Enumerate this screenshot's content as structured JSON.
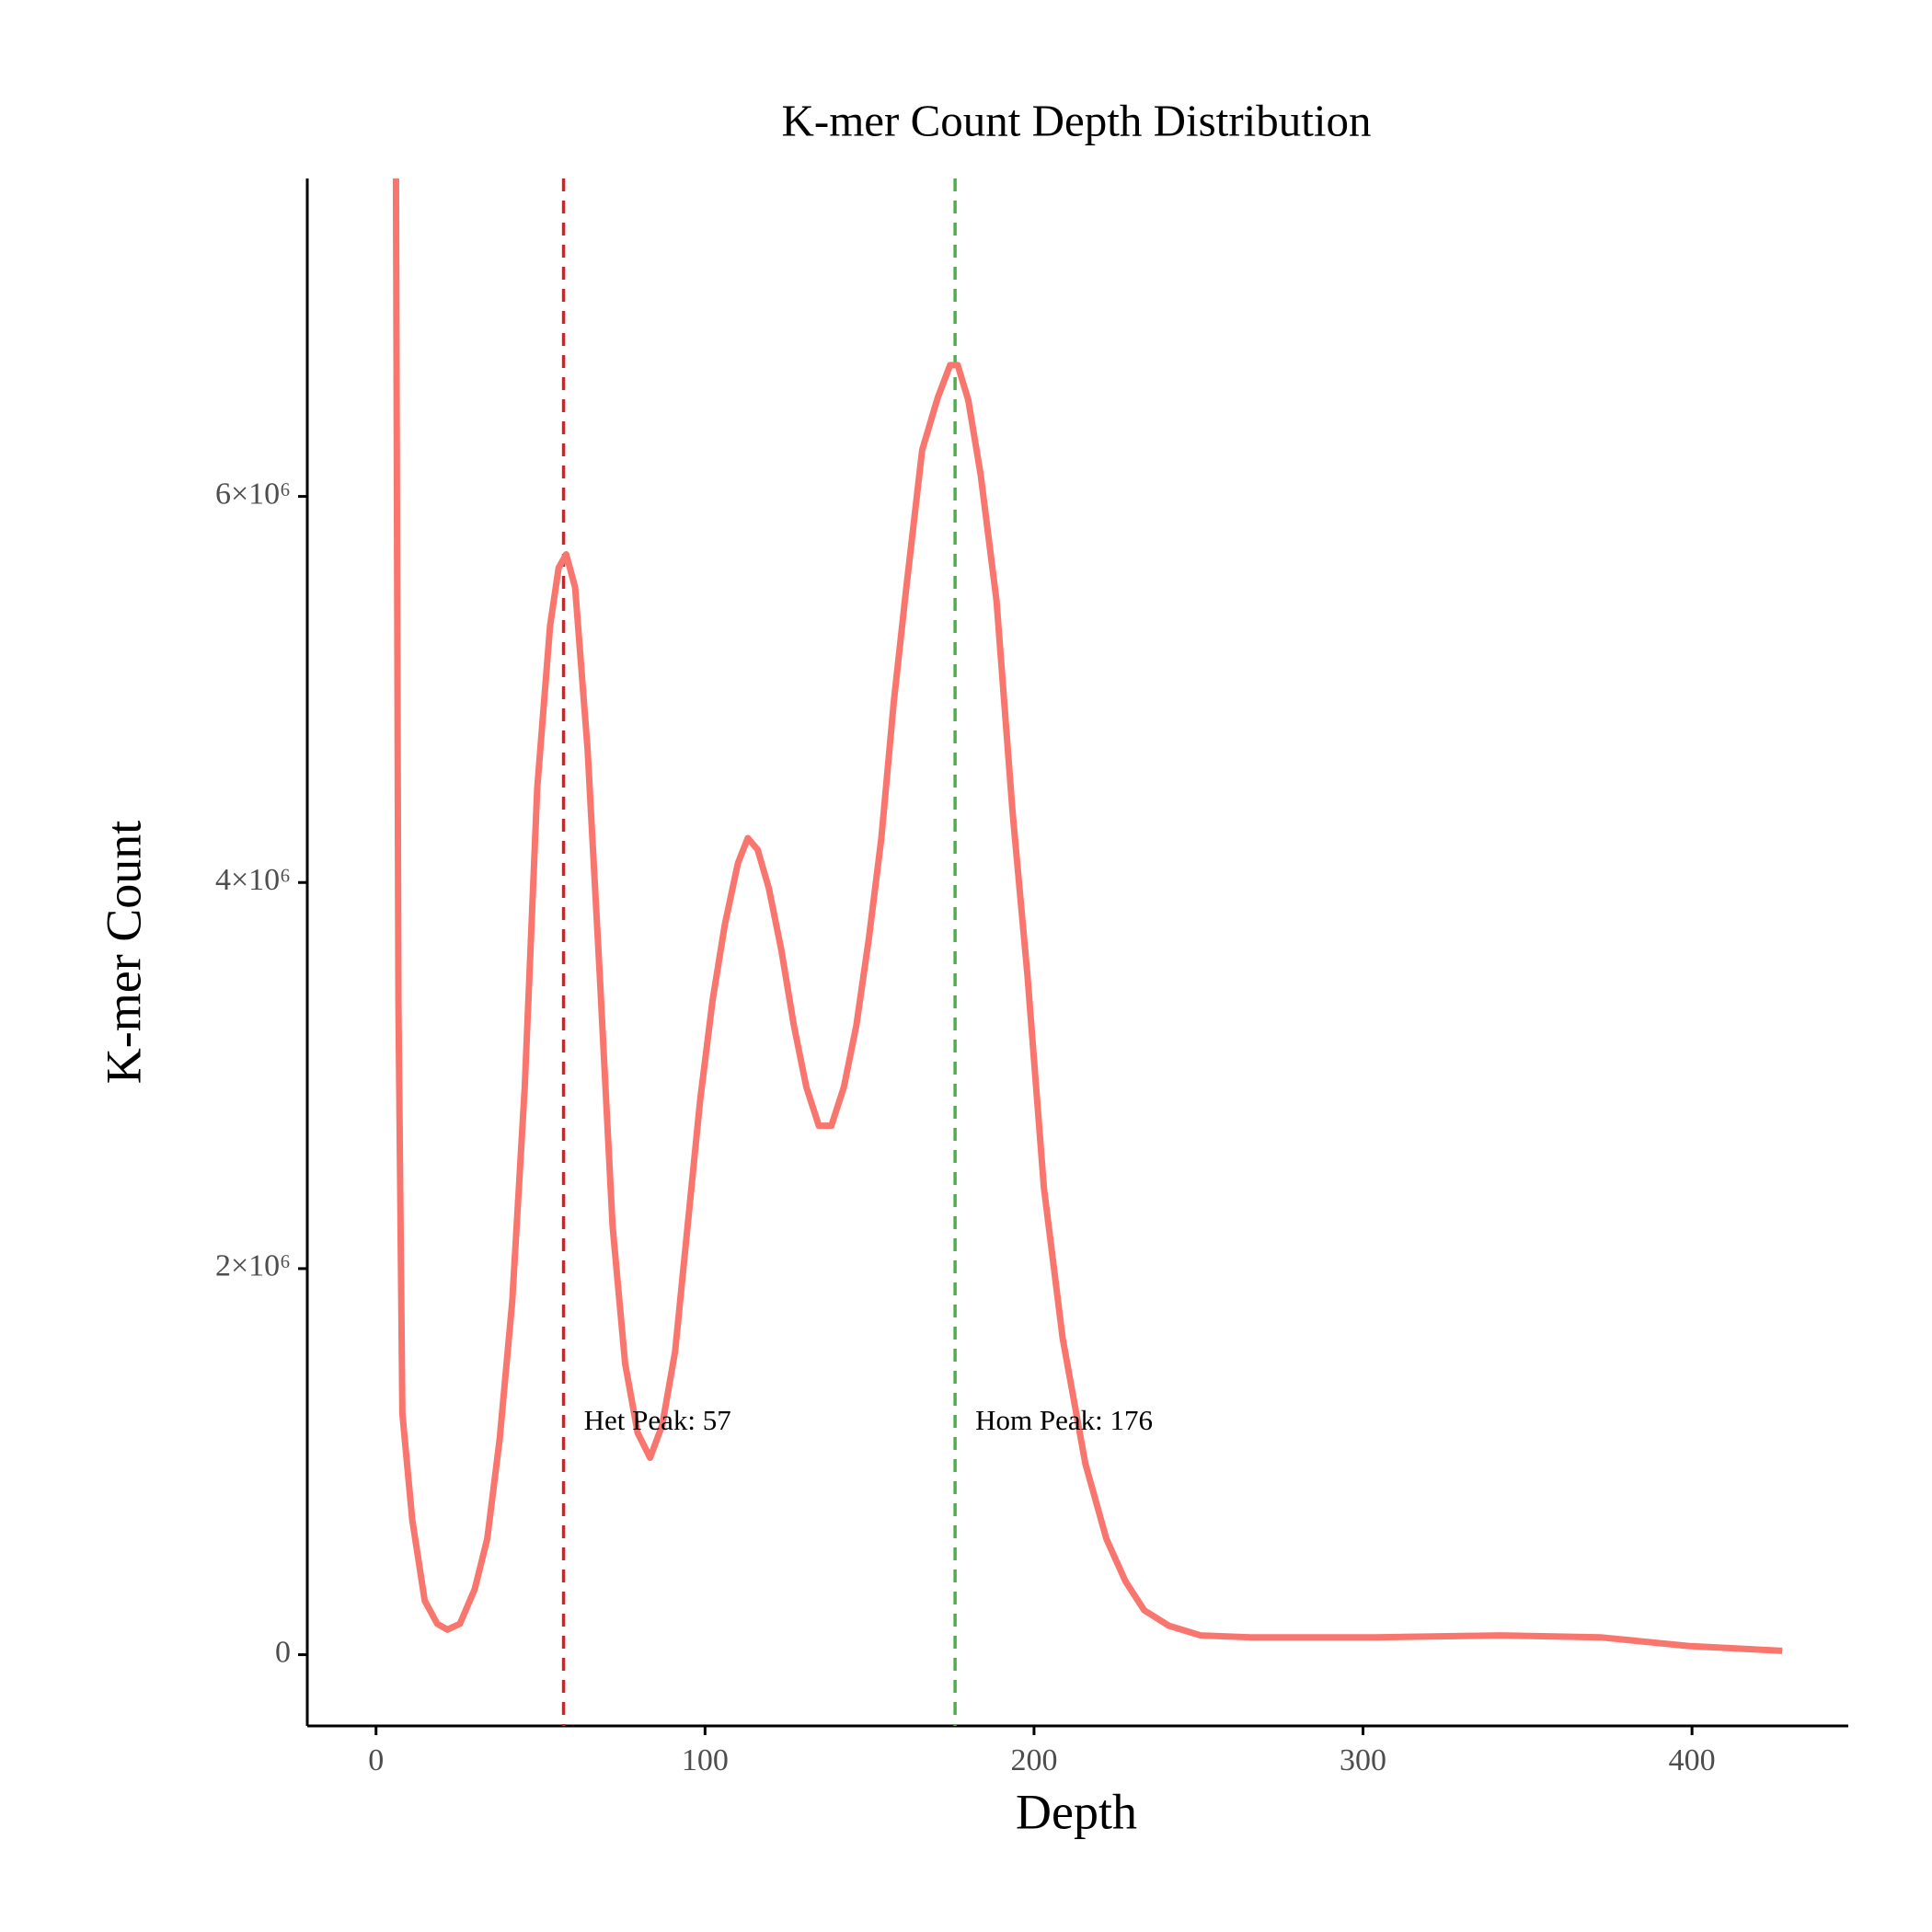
{
  "chart_data": {
    "type": "line",
    "title": "K-mer Count Depth Distribution",
    "x_label": "Depth",
    "y_label": "K-mer Count",
    "x": [
      6,
      6.8,
      8,
      11,
      14.8,
      18.6,
      21.7,
      25.5,
      30,
      33.8,
      37.6,
      41.4,
      45.2,
      49,
      52.9,
      55.5,
      57.8,
      60.5,
      64.3,
      68,
      71.9,
      75.7,
      79.5,
      83.3,
      87,
      90.9,
      94.7,
      98.5,
      102.3,
      106,
      110,
      113,
      116,
      119.4,
      123.2,
      127,
      130.8,
      134.6,
      138.4,
      142.2,
      146,
      149.8,
      153.6,
      157.4,
      161.2,
      166,
      170.7,
      174.5,
      176.8,
      180,
      183.8,
      188.6,
      193.5,
      198,
      203,
      208.7,
      215.6,
      222,
      227.8,
      233.5,
      241,
      250.6,
      265.8,
      303.8,
      341.8,
      372.2,
      398.9,
      427.4
    ],
    "series": [
      {
        "name": "K-mer Count",
        "color": "#F8766D",
        "values": [
          8000000,
          3390000,
          1250000,
          700000,
          280000,
          160000,
          130000,
          160000,
          340000,
          600000,
          1120000,
          1830000,
          2940000,
          4490000,
          5330000,
          5630000,
          5700000,
          5530000,
          4690000,
          3520000,
          2220000,
          1510000,
          1150000,
          1020000,
          1190000,
          1570000,
          2220000,
          2870000,
          3390000,
          3780000,
          4100000,
          4230000,
          4170000,
          3970000,
          3650000,
          3260000,
          2940000,
          2740000,
          2740000,
          2940000,
          3260000,
          3710000,
          4230000,
          4940000,
          5530000,
          6240000,
          6510000,
          6680000,
          6680000,
          6500000,
          6110000,
          5460000,
          4360000,
          3520000,
          2420000,
          1640000,
          990000,
          600000,
          380000,
          230000,
          150000,
          100000,
          90000,
          90000,
          100000,
          90000,
          45000,
          20000
        ]
      }
    ],
    "vlines": [
      {
        "x": 57,
        "color": "#E41A1C",
        "label": "Het Peak: 57"
      },
      {
        "x": 176,
        "color": "#4DAF4A",
        "label": "Hom Peak: 176"
      }
    ],
    "xlim": [
      -20.9,
      447.5
    ],
    "ylim": [
      -369000,
      7647000
    ],
    "xticks": [
      0,
      100,
      200,
      300,
      400
    ],
    "yticks": [
      0,
      {
        "value": 2000000,
        "label": "2×10⁶"
      },
      {
        "value": 4000000,
        "label": "4×10⁶"
      },
      {
        "value": 6000000,
        "label": "6×10⁶"
      }
    ],
    "grid": false
  }
}
